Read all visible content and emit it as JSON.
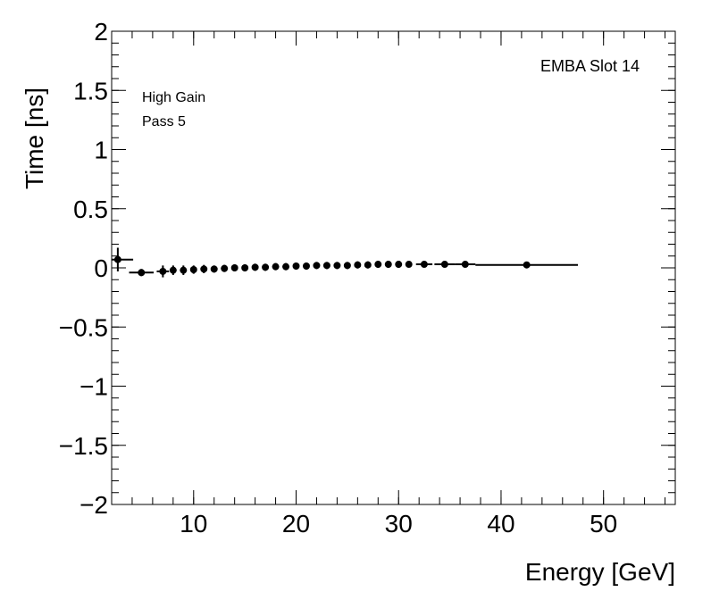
{
  "chart_data": {
    "type": "scatter",
    "title": "",
    "xlabel": "Energy [GeV]",
    "ylabel": "Time [ns]",
    "xlim": [
      2.0,
      57.0
    ],
    "ylim": [
      -2.0,
      2.0
    ],
    "x_ticks": [
      10,
      20,
      30,
      40,
      50
    ],
    "y_ticks": [
      -2,
      -1.5,
      -1,
      -0.5,
      0,
      0.5,
      1,
      1.5,
      2
    ],
    "y_tick_labels": [
      "−2",
      "−1.5",
      "−1",
      "−0.5",
      "0",
      "0.5",
      "1",
      "1.5",
      "2"
    ],
    "annotations": [
      "EMBA Slot 14",
      "High Gain",
      "Pass 5"
    ],
    "grid": false,
    "marker_color": "#000000",
    "series": [
      {
        "points": [
          {
            "x": 2.6,
            "y": 0.07,
            "xerr": 1.5,
            "yerr": 0.1
          },
          {
            "x": 4.9,
            "y": -0.04,
            "xerr": 1.2,
            "yerr": 0.03
          },
          {
            "x": 7.0,
            "y": -0.03,
            "xerr": 0.6,
            "yerr": 0.05
          },
          {
            "x": 8.0,
            "y": -0.02,
            "xerr": 0.3,
            "yerr": 0.04
          },
          {
            "x": 9.0,
            "y": -0.02,
            "xerr": 0.3,
            "yerr": 0.04
          },
          {
            "x": 10.0,
            "y": -0.015,
            "xerr": 0.3,
            "yerr": 0.035
          },
          {
            "x": 11.0,
            "y": -0.01,
            "xerr": 0.3,
            "yerr": 0.035
          },
          {
            "x": 12.0,
            "y": -0.01,
            "xerr": 0.3,
            "yerr": 0.03
          },
          {
            "x": 13.0,
            "y": -0.005,
            "xerr": 0.3,
            "yerr": 0.03
          },
          {
            "x": 14.0,
            "y": 0.0,
            "xerr": 0.3,
            "yerr": 0.03
          },
          {
            "x": 15.0,
            "y": 0.0,
            "xerr": 0.3,
            "yerr": 0.03
          },
          {
            "x": 16.0,
            "y": 0.005,
            "xerr": 0.3,
            "yerr": 0.03
          },
          {
            "x": 17.0,
            "y": 0.005,
            "xerr": 0.3,
            "yerr": 0.03
          },
          {
            "x": 18.0,
            "y": 0.01,
            "xerr": 0.3,
            "yerr": 0.03
          },
          {
            "x": 19.0,
            "y": 0.01,
            "xerr": 0.3,
            "yerr": 0.03
          },
          {
            "x": 20.0,
            "y": 0.015,
            "xerr": 0.3,
            "yerr": 0.03
          },
          {
            "x": 21.0,
            "y": 0.015,
            "xerr": 0.3,
            "yerr": 0.03
          },
          {
            "x": 22.0,
            "y": 0.02,
            "xerr": 0.3,
            "yerr": 0.03
          },
          {
            "x": 23.0,
            "y": 0.02,
            "xerr": 0.3,
            "yerr": 0.03
          },
          {
            "x": 24.0,
            "y": 0.02,
            "xerr": 0.3,
            "yerr": 0.03
          },
          {
            "x": 25.0,
            "y": 0.02,
            "xerr": 0.3,
            "yerr": 0.03
          },
          {
            "x": 26.0,
            "y": 0.025,
            "xerr": 0.3,
            "yerr": 0.03
          },
          {
            "x": 27.0,
            "y": 0.025,
            "xerr": 0.3,
            "yerr": 0.03
          },
          {
            "x": 28.0,
            "y": 0.03,
            "xerr": 0.3,
            "yerr": 0.03
          },
          {
            "x": 29.0,
            "y": 0.03,
            "xerr": 0.3,
            "yerr": 0.03
          },
          {
            "x": 30.0,
            "y": 0.03,
            "xerr": 0.3,
            "yerr": 0.03
          },
          {
            "x": 31.0,
            "y": 0.03,
            "xerr": 0.3,
            "yerr": 0.02
          },
          {
            "x": 32.5,
            "y": 0.03,
            "xerr": 0.8,
            "yerr": 0.02
          },
          {
            "x": 34.5,
            "y": 0.03,
            "xerr": 1.0,
            "yerr": 0.02
          },
          {
            "x": 36.5,
            "y": 0.03,
            "xerr": 1.0,
            "yerr": 0.02
          },
          {
            "x": 42.5,
            "y": 0.025,
            "xerr": 5.0,
            "yerr": 0.02
          }
        ]
      }
    ]
  }
}
